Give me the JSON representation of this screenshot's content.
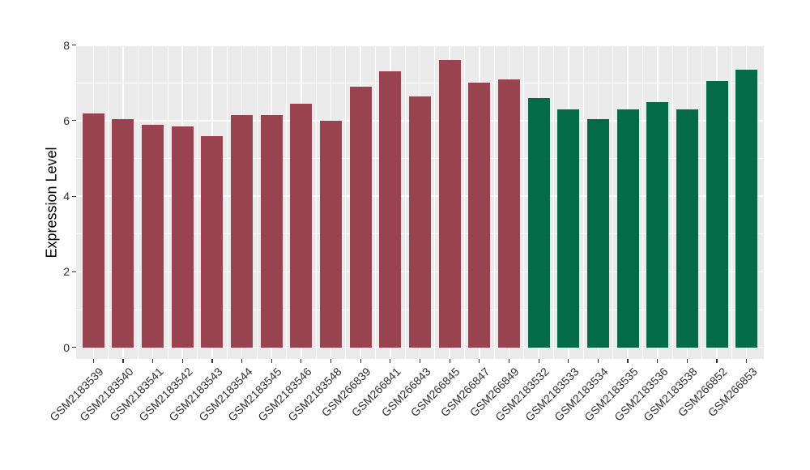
{
  "chart_data": {
    "type": "bar",
    "title": "",
    "xlabel": "",
    "ylabel": "Expression Level",
    "ylim": [
      0,
      8
    ],
    "yticks": [
      0,
      2,
      4,
      6,
      8
    ],
    "legend_position": "none",
    "grid": {
      "major_horizontal": [
        0,
        2,
        4,
        6,
        8
      ],
      "minor_horizontal": [
        1,
        3,
        5,
        7
      ],
      "vertical": "category centers and midpoints"
    },
    "categories": [
      "GSM2183539",
      "GSM2183540",
      "GSM2183541",
      "GSM2183542",
      "GSM2183543",
      "GSM2183544",
      "GSM2183545",
      "GSM2183546",
      "GSM2183548",
      "GSM266839",
      "GSM266841",
      "GSM266843",
      "GSM266845",
      "GSM266847",
      "GSM266849",
      "GSM2183532",
      "GSM2183533",
      "GSM2183534",
      "GSM2183535",
      "GSM2183536",
      "GSM2183538",
      "GSM266852",
      "GSM266853"
    ],
    "values": [
      6.2,
      6.05,
      5.9,
      5.85,
      5.6,
      6.15,
      6.15,
      6.45,
      6.0,
      6.9,
      7.3,
      6.65,
      7.6,
      7.0,
      7.1,
      6.6,
      6.3,
      6.05,
      6.3,
      6.5,
      6.3,
      7.05,
      7.35
    ],
    "bar_groups": [
      "maroon",
      "maroon",
      "maroon",
      "maroon",
      "maroon",
      "maroon",
      "maroon",
      "maroon",
      "maroon",
      "maroon",
      "maroon",
      "maroon",
      "maroon",
      "maroon",
      "maroon",
      "green",
      "green",
      "green",
      "green",
      "green",
      "green",
      "green",
      "green"
    ],
    "group_colors": {
      "maroon": "#994351",
      "green": "#036B47"
    }
  },
  "colors": {
    "background": "#FFFFFF",
    "panel_bg": "#EBEBEB",
    "gridline": "#FFFFFF",
    "tick_label": "#303030",
    "axis_title": "#000000",
    "tick_mark": "#333333"
  }
}
